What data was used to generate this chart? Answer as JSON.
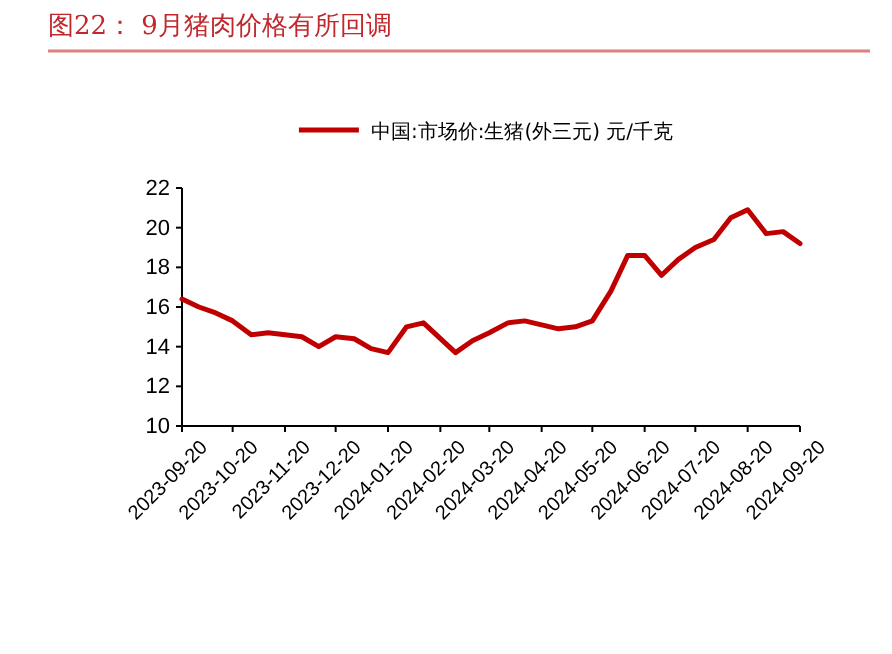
{
  "chart_data": {
    "type": "line",
    "title": "图22： 9月猪肉价格有所回调",
    "x": [
      "2023-09-20",
      "2023-09-30",
      "2023-10-10",
      "2023-10-20",
      "2023-10-31",
      "2023-11-10",
      "2023-11-20",
      "2023-11-30",
      "2023-12-10",
      "2023-12-20",
      "2023-12-31",
      "2024-01-10",
      "2024-01-20",
      "2024-01-31",
      "2024-02-10",
      "2024-02-29",
      "2024-03-10",
      "2024-03-20",
      "2024-03-31",
      "2024-04-10",
      "2024-04-20",
      "2024-04-30",
      "2024-05-10",
      "2024-05-20",
      "2024-05-31",
      "2024-06-10",
      "2024-06-20",
      "2024-06-30",
      "2024-07-10",
      "2024-07-20",
      "2024-07-31",
      "2024-08-10",
      "2024-08-20",
      "2024-08-31",
      "2024-09-10",
      "2024-09-20"
    ],
    "series": [
      {
        "name": "中国:市场价:生猪(外三元) 元/千克",
        "color": "#c00000",
        "values": [
          16.4,
          16.0,
          15.7,
          15.3,
          14.6,
          14.7,
          14.6,
          14.5,
          14.0,
          14.5,
          14.4,
          13.9,
          13.7,
          15.0,
          15.2,
          13.7,
          14.3,
          14.7,
          15.2,
          15.3,
          15.1,
          14.9,
          15.0,
          15.3,
          16.8,
          18.6,
          18.6,
          17.6,
          18.4,
          19.0,
          19.4,
          20.5,
          20.9,
          19.7,
          19.8,
          19.2
        ]
      }
    ],
    "xlim": [
      "2023-09-20",
      "2024-09-20"
    ],
    "xticks": [
      "2023-09-20",
      "2023-10-20",
      "2023-11-20",
      "2023-12-20",
      "2024-01-20",
      "2024-02-20",
      "2024-03-20",
      "2024-04-20",
      "2024-05-20",
      "2024-06-20",
      "2024-07-20",
      "2024-08-20",
      "2024-09-20"
    ],
    "ylim": [
      10,
      22
    ],
    "yticks": [
      10,
      12,
      14,
      16,
      18,
      20,
      22
    ],
    "grid": false,
    "legend": "top",
    "marker": "none",
    "line_style": "solid"
  }
}
